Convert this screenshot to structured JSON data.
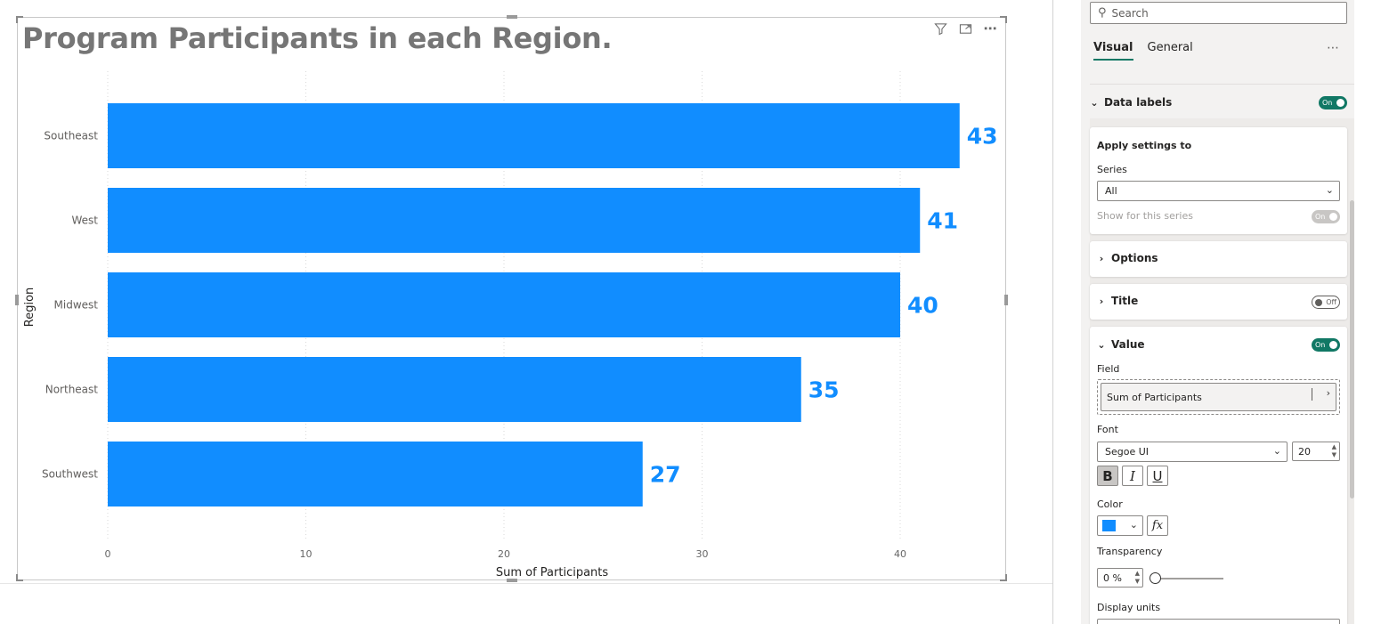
{
  "visual": {
    "title": "Program Participants in each Region.",
    "toolbar": {
      "filter_icon": "filter-icon",
      "focus_icon": "focus-mode-icon",
      "more_icon": "more-options-icon",
      "more_label": "⋯"
    }
  },
  "chart_data": {
    "type": "bar",
    "orientation": "horizontal",
    "categories": [
      "Southeast",
      "West",
      "Midwest",
      "Northeast",
      "Southwest"
    ],
    "values": [
      43,
      41,
      40,
      35,
      27
    ],
    "data_labels": [
      "43",
      "41",
      "40",
      "35",
      "27"
    ],
    "title": "Program Participants in each Region.",
    "xlabel": "Sum of Participants",
    "ylabel": "Region",
    "xlim": [
      0,
      45
    ],
    "x_ticks": [
      0,
      10,
      20,
      30,
      40
    ],
    "x_tick_labels": [
      "0",
      "10",
      "20",
      "30",
      "40"
    ],
    "grid": true,
    "bar_color": "#118DFF",
    "label_color": "#118DFF"
  },
  "pane": {
    "search_placeholder": "Search",
    "tabs": [
      {
        "label": "Visual",
        "active": true
      },
      {
        "label": "General",
        "active": false
      }
    ],
    "more_label": "⋯",
    "data_labels": {
      "label": "Data labels",
      "toggle": "On"
    },
    "apply_settings": {
      "heading": "Apply settings to",
      "series_label": "Series",
      "series_value": "All",
      "show_for_series_label": "Show for this series",
      "show_for_series_toggle": "On"
    },
    "options": {
      "label": "Options"
    },
    "title_section": {
      "label": "Title",
      "toggle": "Off"
    },
    "value": {
      "label": "Value",
      "toggle": "On",
      "field_label": "Field",
      "field_value": "Sum of Participants",
      "font_label": "Font",
      "font_family": "Segoe UI",
      "font_size": "20",
      "bold": "B",
      "italic": "I",
      "underline": "U",
      "color_label": "Color",
      "color_value": "#118DFF",
      "fx_label": "fx",
      "transparency_label": "Transparency",
      "transparency_value": "0 %",
      "transparency_level": 0,
      "display_units_label": "Display units"
    }
  },
  "colors": {
    "accent": "#117865",
    "bar": "#118DFF",
    "title": "#767676"
  }
}
